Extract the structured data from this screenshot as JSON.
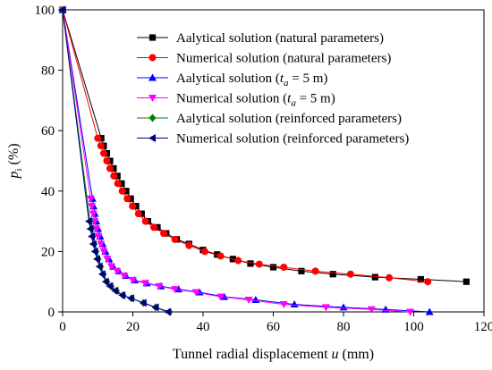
{
  "chart_data": {
    "type": "line",
    "title": "",
    "xlabel": {
      "prefix": "Tunnel radial displacement ",
      "var": "u",
      "unit": " (mm)"
    },
    "ylabel": {
      "var": "p",
      "sub": "i",
      "unit": " (%)"
    },
    "xlim": [
      0,
      120
    ],
    "ylim": [
      0,
      100
    ],
    "xticks": [
      0,
      20,
      40,
      60,
      80,
      100,
      120
    ],
    "yticks": [
      0,
      20,
      40,
      60,
      80,
      100
    ],
    "grid": false,
    "legend_position": "top-right",
    "series": [
      {
        "name": "Aalytical solution (natural parameters)",
        "label_parts": [
          "Aalytical solution (natural parameters)"
        ],
        "color": "#000000",
        "marker": "square",
        "x": [
          0,
          11.0,
          11.7,
          12.6,
          13.5,
          14.5,
          15.6,
          16.8,
          18.1,
          19.4,
          20.9,
          22.5,
          24.3,
          27.0,
          29.5,
          32.5,
          36.0,
          40.0,
          44.0,
          48.5,
          53.5,
          60.0,
          68.0,
          77.0,
          89.0,
          102.0,
          115.0
        ],
        "y": [
          100,
          57.5,
          55,
          52.5,
          50,
          47.5,
          45,
          42.5,
          40,
          37.5,
          35,
          32.5,
          30,
          28,
          26,
          24,
          22.5,
          20.5,
          19,
          17.5,
          16,
          14.8,
          13.5,
          12.5,
          11.5,
          10.8,
          10
        ]
      },
      {
        "name": "Numerical solution (natural parameters)",
        "label_parts": [
          "Numerical solution (natural parameters)"
        ],
        "color": "#ff0000",
        "marker": "circle",
        "x": [
          0,
          10.0,
          10.9,
          11.7,
          12.6,
          13.5,
          14.6,
          15.7,
          17.0,
          18.4,
          19.9,
          21.6,
          23.6,
          26.0,
          28.8,
          32.0,
          36.0,
          40.5,
          45.0,
          50.0,
          56.0,
          63.0,
          72.0,
          82.0,
          93.0,
          104.0
        ],
        "y": [
          100,
          57.5,
          55,
          52.5,
          50,
          47.5,
          45,
          42.5,
          40,
          37.5,
          35,
          32.5,
          30,
          28,
          26,
          24,
          22,
          20,
          18.5,
          17,
          15.8,
          14.8,
          13.5,
          12.5,
          11.3,
          10
        ]
      },
      {
        "name": "Aalytical solution (ta = 5 m)",
        "label_parts": [
          "Aalytical solution (",
          "t",
          "a",
          " = 5 m)"
        ],
        "color": "#0000ff",
        "marker": "triangle-up",
        "x": [
          0,
          8.5,
          8.8,
          9.2,
          9.6,
          10.1,
          10.7,
          11.4,
          12.2,
          13.2,
          14.4,
          16.0,
          18.0,
          20.5,
          24.0,
          28.0,
          33.0,
          39.0,
          46.0,
          55.0,
          66.0,
          80.0,
          92.0,
          104.5
        ],
        "y": [
          100,
          37.5,
          35,
          32.5,
          30,
          27.5,
          25,
          22.5,
          20,
          17.5,
          15,
          13.5,
          12,
          10.5,
          9.5,
          8.5,
          7.5,
          6.5,
          5,
          4,
          2.5,
          1.5,
          0.8,
          0
        ]
      },
      {
        "name": "Numerical solution (ta = 5 m)",
        "label_parts": [
          "Numerical solution (",
          "t",
          "a",
          " = 5 m)"
        ],
        "color": "#ff00ff",
        "marker": "triangle-down",
        "x": [
          0,
          8.0,
          8.3,
          8.7,
          9.1,
          9.6,
          10.2,
          10.9,
          11.7,
          12.7,
          13.9,
          15.5,
          17.5,
          20.0,
          23.5,
          27.5,
          32.0,
          38.0,
          45.0,
          53.0,
          63.0,
          75.0,
          88.0,
          99.0
        ],
        "y": [
          100,
          37.5,
          35,
          32.5,
          30,
          27.5,
          25,
          22.5,
          20,
          17.5,
          15,
          13.5,
          12,
          10.5,
          9.5,
          8.5,
          7.5,
          6.5,
          5,
          4,
          2.5,
          1.5,
          0.8,
          0
        ]
      },
      {
        "name": "Aalytical solution (reinforced parameters)",
        "label_parts": [
          "Aalytical solution (reinforced parameters)"
        ],
        "color": "#008000",
        "marker": "diamond",
        "x": [
          0,
          7.8,
          8.2,
          8.6,
          9.0,
          9.5,
          10.1,
          10.8,
          11.6,
          12.6,
          13.8,
          15.3,
          17.2,
          19.6,
          23.0,
          26.5,
          30.5
        ],
        "y": [
          100,
          30,
          27.5,
          25,
          22.5,
          20,
          17.5,
          15,
          12.5,
          10,
          8.5,
          7,
          5.5,
          4.5,
          3,
          1.5,
          0
        ]
      },
      {
        "name": "Numerical solution (reinforced parameters)",
        "label_parts": [
          "Numerical solution (reinforced parameters)"
        ],
        "color": "#000080",
        "marker": "triangle-left",
        "x": [
          0,
          7.5,
          7.9,
          8.3,
          8.7,
          9.2,
          9.8,
          10.5,
          11.3,
          12.3,
          13.5,
          15.0,
          17.0,
          19.5,
          23.0,
          26.5,
          30.0
        ],
        "y": [
          100,
          30,
          27.5,
          25,
          22.5,
          20,
          17.5,
          15,
          12.5,
          10,
          8.5,
          7,
          5.5,
          4.5,
          3,
          1.5,
          0
        ]
      }
    ]
  }
}
